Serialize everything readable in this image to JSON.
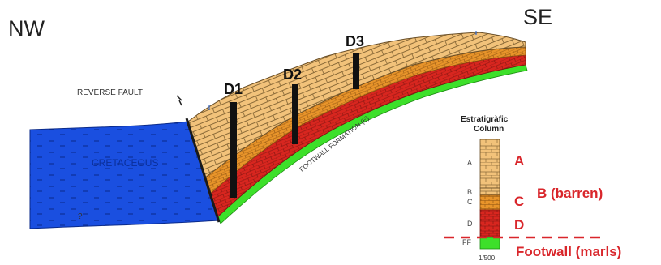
{
  "directions": {
    "west": "NW",
    "east": "SE"
  },
  "labels": {
    "reverse_fault": "REVERSE FAULT",
    "cretaceous": "CRETACEOUS",
    "question": "?",
    "footwall_formation": "FOOTWALL FORMATION (E)"
  },
  "drills": [
    "D1",
    "D2",
    "D3"
  ],
  "column": {
    "title_line1": "Estratigràfic",
    "title_line2": "Column",
    "units": [
      "A",
      "B",
      "C",
      "D",
      "FF"
    ],
    "scale": "1/500"
  },
  "legend": {
    "a": "A",
    "b": "B (barren)",
    "c": "C",
    "d": "D",
    "footwall": "Footwall (marls)"
  },
  "colors": {
    "cretaceous_blue": "#1a4fe0",
    "limestone_tan": "#f2c27a",
    "unit_b_orange": "#e8942a",
    "unit_d_red": "#d8261f",
    "footwall_green": "#3de02a",
    "annotation_red": "#d9262b"
  }
}
